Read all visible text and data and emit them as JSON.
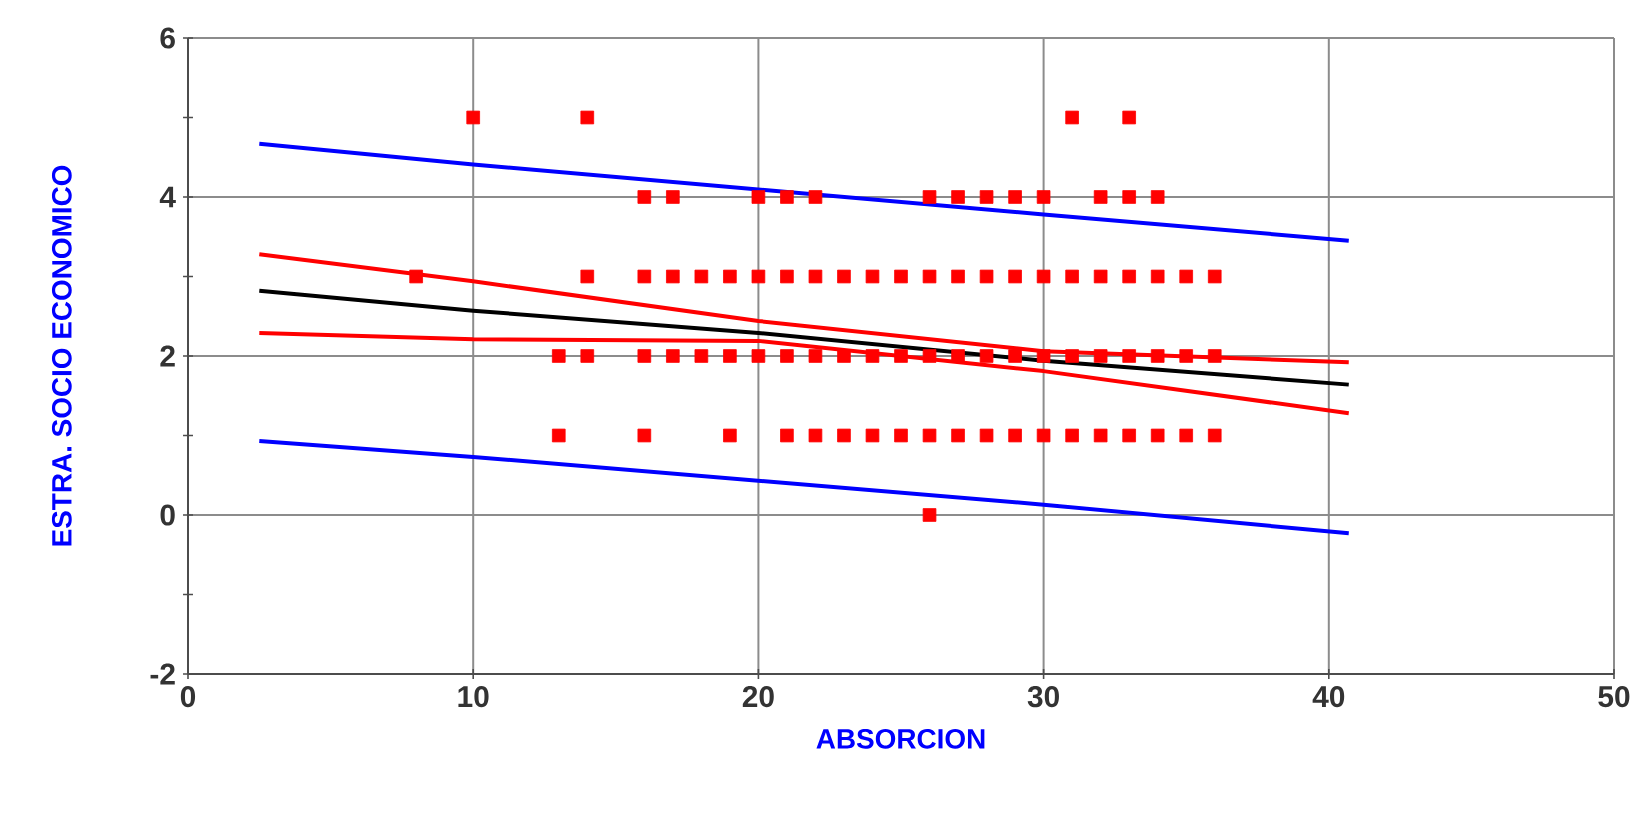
{
  "chart_data": {
    "type": "scatter",
    "xlabel": "ABSORCION",
    "ylabel": "ESTRA. SOCIO ECONOMICO",
    "xlim": [
      0,
      50
    ],
    "xticks": [
      0,
      10,
      20,
      30,
      40,
      50
    ],
    "ylim": [
      -2,
      6
    ],
    "yticks": [
      -2,
      {
        "value": -1,
        "label": null
      },
      0,
      {
        "value": 1,
        "label": null
      },
      2,
      {
        "value": 3,
        "label": null
      },
      4,
      {
        "value": 5,
        "label": null
      },
      6
    ],
    "grid": true,
    "marker": "square",
    "series": [
      {
        "color": "#ff0000",
        "x": [
          10,
          14,
          31,
          33,
          16,
          17,
          20,
          21,
          22,
          26,
          27,
          28,
          29,
          30,
          32,
          33,
          34,
          8,
          14,
          16,
          17,
          18,
          19,
          20,
          21,
          22,
          23,
          24,
          25,
          26,
          27,
          28,
          29,
          30,
          31,
          32,
          33,
          34,
          35,
          36,
          13,
          14,
          16,
          17,
          18,
          19,
          20,
          21,
          22,
          23,
          24,
          25,
          26,
          27,
          28,
          29,
          30,
          31,
          32,
          33,
          34,
          35,
          36,
          13,
          16,
          19,
          21,
          22,
          23,
          24,
          25,
          26,
          27,
          28,
          29,
          30,
          31,
          32,
          33,
          34,
          35,
          36,
          26
        ],
        "values": [
          5,
          5,
          5,
          5,
          4,
          4,
          4,
          4,
          4,
          4,
          4,
          4,
          4,
          4,
          4,
          4,
          4,
          3,
          3,
          3,
          3,
          3,
          3,
          3,
          3,
          3,
          3,
          3,
          3,
          3,
          3,
          3,
          3,
          3,
          3,
          3,
          3,
          3,
          3,
          3,
          2,
          2,
          2,
          2,
          2,
          2,
          2,
          2,
          2,
          2,
          2,
          2,
          2,
          2,
          2,
          2,
          2,
          2,
          2,
          2,
          2,
          2,
          2,
          1,
          1,
          1,
          1,
          1,
          1,
          1,
          1,
          1,
          1,
          1,
          1,
          1,
          1,
          1,
          1,
          1,
          1,
          1,
          0
        ]
      },
      {
        "type": "line",
        "color": "#000000",
        "marker": "none",
        "x": [
          2.5,
          10,
          20,
          30,
          40.7
        ],
        "values": [
          2.82,
          2.57,
          2.29,
          1.94,
          1.64
        ]
      },
      {
        "type": "line",
        "color": "#ff0000",
        "marker": "none",
        "x": [
          2.5,
          10,
          20,
          30,
          40.7
        ],
        "values": [
          3.28,
          2.94,
          2.44,
          2.06,
          1.92
        ]
      },
      {
        "type": "line",
        "color": "#ff0000",
        "marker": "none",
        "x": [
          2.5,
          10,
          20,
          30,
          40.7
        ],
        "values": [
          2.29,
          2.21,
          2.19,
          1.81,
          1.28
        ]
      },
      {
        "type": "line",
        "color": "#0000ff",
        "marker": "none",
        "x": [
          2.5,
          10,
          30,
          40.7
        ],
        "values": [
          4.67,
          4.41,
          3.78,
          3.45
        ]
      },
      {
        "type": "line",
        "color": "#0000ff",
        "marker": "none",
        "x": [
          2.5,
          10,
          30,
          40.7
        ],
        "values": [
          0.93,
          0.73,
          0.13,
          -0.23
        ]
      }
    ]
  }
}
